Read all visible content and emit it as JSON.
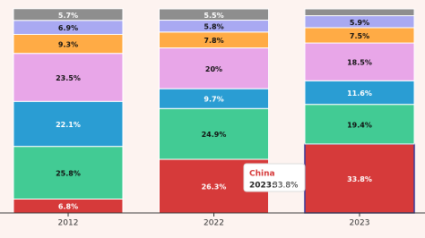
{
  "chart_data": {
    "type": "stacked_bar_100",
    "categories": [
      "2012",
      "2022",
      "2023"
    ],
    "ylim": [
      0,
      100
    ],
    "series": [
      {
        "name": "China",
        "color": "#d63a3a",
        "text_color": "#ffffff",
        "values": [
          6.8,
          26.3,
          33.8
        ],
        "value_labels": [
          "6.8%",
          "26.3%",
          "33.8%"
        ]
      },
      {
        "color": "#42cb94",
        "text_color": "#111111",
        "values": [
          25.8,
          24.9,
          19.4
        ],
        "value_labels": [
          "25.8%",
          "24.9%",
          "19.4%"
        ]
      },
      {
        "color": "#2a9dd3",
        "text_color": "#ffffff",
        "values": [
          22.1,
          9.7,
          11.6
        ],
        "value_labels": [
          "22.1%",
          "9.7%",
          "11.6%"
        ]
      },
      {
        "color": "#e8a6e8",
        "text_color": "#111111",
        "values": [
          23.5,
          20,
          18.5
        ],
        "value_labels": [
          "23.5%",
          "20%",
          "18.5%"
        ]
      },
      {
        "color": "#ffab45",
        "text_color": "#111111",
        "values": [
          9.3,
          7.8,
          7.5
        ],
        "value_labels": [
          "9.3%",
          "7.8%",
          "7.5%"
        ]
      },
      {
        "color": "#a9a9f2",
        "text_color": "#111111",
        "values": [
          6.9,
          5.8,
          5.9
        ],
        "value_labels": [
          "6.9%",
          "5.8%",
          "5.9%"
        ]
      },
      {
        "color": "#8e8e8e",
        "text_color": "#ffffff",
        "values": [
          5.7,
          5.5,
          3.3
        ],
        "value_labels": [
          "5.7%",
          "5.5%",
          null
        ]
      }
    ],
    "tooltip": {
      "title": "China",
      "label": "2023:",
      "value": "33.8%"
    }
  }
}
